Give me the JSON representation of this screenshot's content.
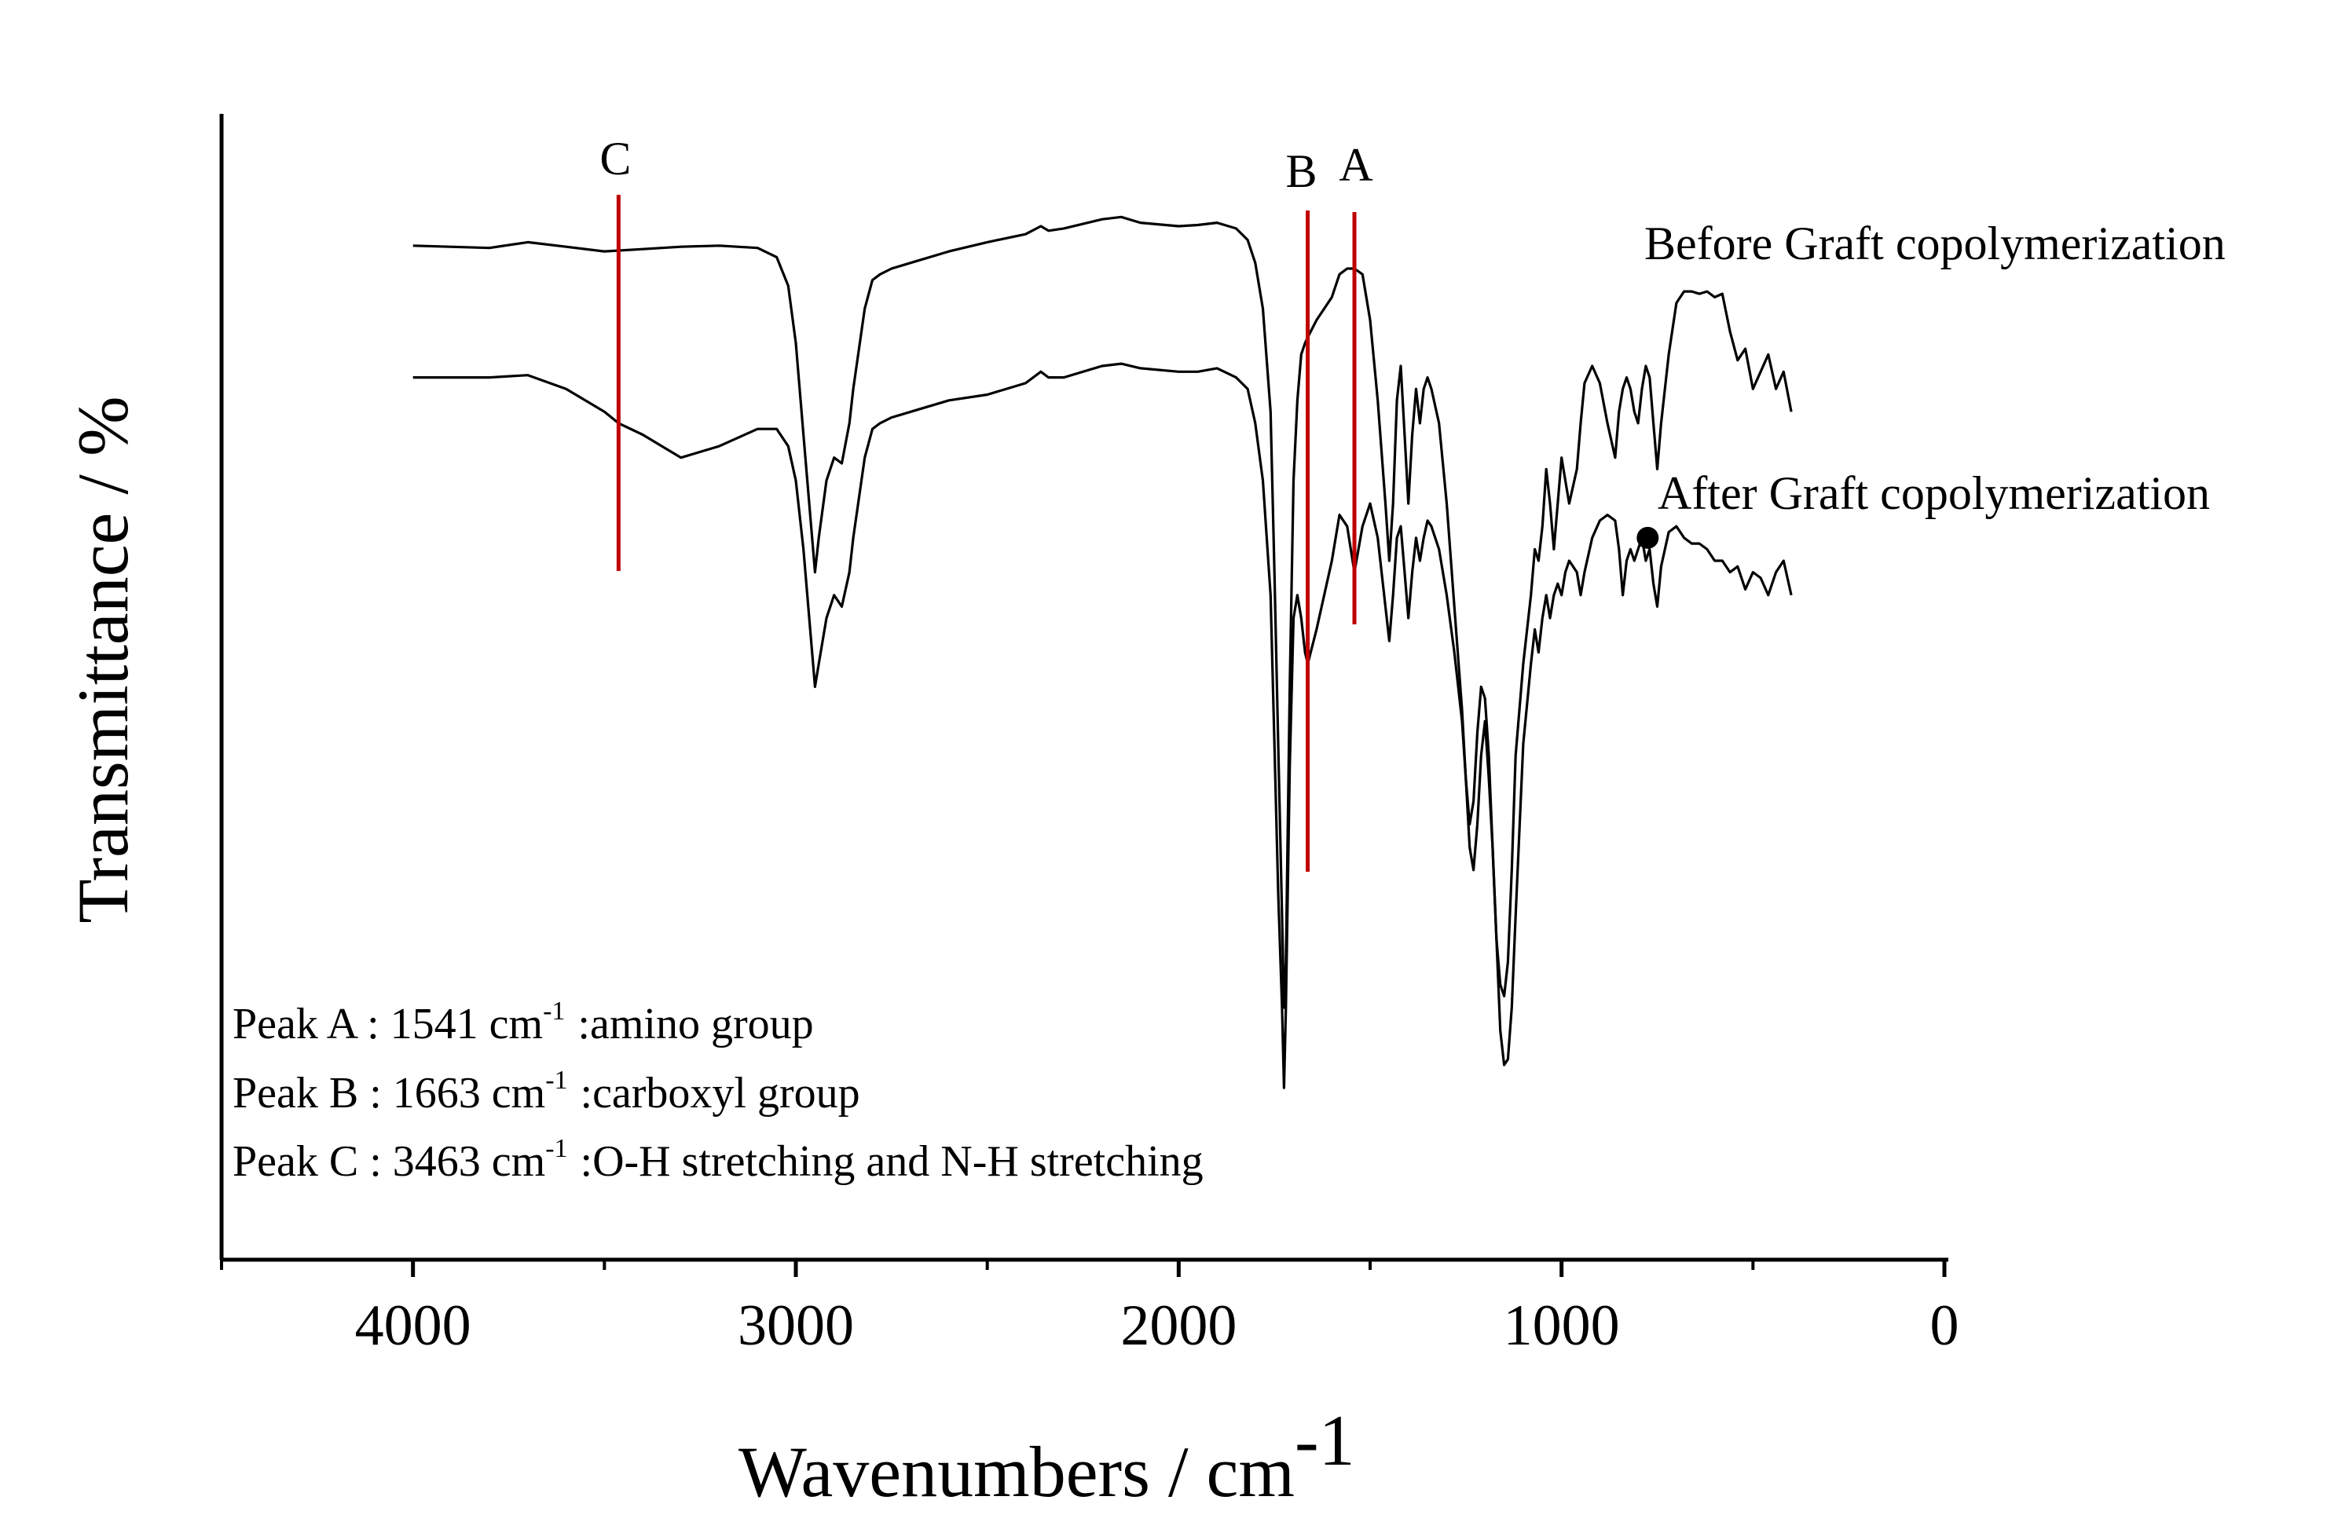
{
  "chart_data": {
    "type": "line",
    "title": "",
    "xlabel": "Wavenumbers / cm",
    "xlabel_superscript": "-1",
    "ylabel": "Transmittance / %",
    "xlim": [
      4500,
      0
    ],
    "x_reversed": true,
    "ylim": [
      0,
      100
    ],
    "y_ticks_shown": false,
    "x_tick_labels": [
      "4000",
      "3000",
      "2000",
      "1000",
      "0"
    ],
    "x_tick_values": [
      4000,
      3000,
      2000,
      1000,
      0
    ],
    "x_minor_tick_values": [
      4500,
      3500,
      2500,
      1500,
      500
    ],
    "grid": false,
    "line_color": "#000000",
    "marker_color": "#c00000",
    "series": [
      {
        "name": "Before Graft copolymerization",
        "x": [
          4000,
          3800,
          3700,
          3600,
          3500,
          3400,
          3300,
          3200,
          3100,
          3050,
          3020,
          3000,
          2980,
          2960,
          2950,
          2940,
          2920,
          2900,
          2880,
          2860,
          2850,
          2820,
          2800,
          2780,
          2750,
          2700,
          2600,
          2500,
          2400,
          2360,
          2340,
          2300,
          2200,
          2150,
          2100,
          2000,
          1950,
          1900,
          1850,
          1820,
          1800,
          1780,
          1760,
          1750,
          1740,
          1730,
          1725,
          1720,
          1710,
          1700,
          1690,
          1680,
          1670,
          1663,
          1640,
          1600,
          1580,
          1560,
          1541,
          1520,
          1500,
          1480,
          1460,
          1450,
          1440,
          1430,
          1420,
          1410,
          1400,
          1390,
          1380,
          1370,
          1360,
          1350,
          1340,
          1320,
          1300,
          1280,
          1260,
          1250,
          1240,
          1230,
          1220,
          1210,
          1200,
          1190,
          1180,
          1170,
          1160,
          1150,
          1140,
          1130,
          1120,
          1100,
          1080,
          1070,
          1060,
          1050,
          1040,
          1030,
          1020,
          1010,
          1000,
          990,
          980,
          960,
          950,
          940,
          920,
          900,
          880,
          860,
          850,
          840,
          830,
          820,
          810,
          800,
          790,
          780,
          770,
          760,
          750,
          740,
          720,
          700,
          680,
          660,
          640,
          620,
          600,
          580,
          560,
          540,
          520,
          500,
          480,
          460,
          440,
          420,
          400
        ],
        "y": [
          88.5,
          88.3,
          88.8,
          88.4,
          88.0,
          88.2,
          88.4,
          88.5,
          88.3,
          87.5,
          85.0,
          80.0,
          72.0,
          64.0,
          60.0,
          63.0,
          68.0,
          70.0,
          69.5,
          73.0,
          76.0,
          83.0,
          85.5,
          86.0,
          86.5,
          87.0,
          88.0,
          88.8,
          89.5,
          90.2,
          89.8,
          90.0,
          90.8,
          91.0,
          90.5,
          90.2,
          90.3,
          90.5,
          90.0,
          89.0,
          87.0,
          83.0,
          74.0,
          60.0,
          45.0,
          30.0,
          22.0,
          26.0,
          50.0,
          68.0,
          75.0,
          79.0,
          80.0,
          80.5,
          82.0,
          84.0,
          86.0,
          86.5,
          86.5,
          86.0,
          82.0,
          75.0,
          66.0,
          61.0,
          66.0,
          75.0,
          78.0,
          72.0,
          66.0,
          72.0,
          76.0,
          73.0,
          76.0,
          77.0,
          76.0,
          73.0,
          66.0,
          57.0,
          48.0,
          42.0,
          36.0,
          34.0,
          38.0,
          44.0,
          47.0,
          42.0,
          36.0,
          28.0,
          24.0,
          23.0,
          26.0,
          34.0,
          44.0,
          52.0,
          58.0,
          62.0,
          61.0,
          64.0,
          69.0,
          66.0,
          62.0,
          66.0,
          70.0,
          68.0,
          66.0,
          69.0,
          73.0,
          76.5,
          78.0,
          76.5,
          73.0,
          70.0,
          74.0,
          76.0,
          77.0,
          76.0,
          74.0,
          73.0,
          76.0,
          78.0,
          77.0,
          73.0,
          69.0,
          73.0,
          79.0,
          83.5,
          84.5,
          84.5,
          84.3,
          84.5,
          84.0,
          84.3,
          81.0,
          78.5,
          79.5,
          76.0,
          77.5,
          79.0,
          76.0,
          77.5,
          74.0
        ],
        "label_text": "Before Graft copolymerization"
      },
      {
        "name": "After Graft copolymerization",
        "x": [
          4000,
          3800,
          3700,
          3600,
          3500,
          3463,
          3400,
          3350,
          3300,
          3250,
          3200,
          3100,
          3050,
          3020,
          3000,
          2980,
          2960,
          2950,
          2940,
          2920,
          2900,
          2880,
          2860,
          2850,
          2820,
          2800,
          2780,
          2750,
          2700,
          2600,
          2500,
          2400,
          2360,
          2340,
          2300,
          2200,
          2150,
          2100,
          2000,
          1950,
          1900,
          1850,
          1820,
          1800,
          1780,
          1760,
          1750,
          1740,
          1730,
          1725,
          1720,
          1710,
          1700,
          1690,
          1680,
          1670,
          1663,
          1640,
          1600,
          1580,
          1560,
          1541,
          1520,
          1500,
          1480,
          1460,
          1450,
          1440,
          1430,
          1420,
          1410,
          1400,
          1390,
          1380,
          1370,
          1360,
          1350,
          1340,
          1320,
          1300,
          1280,
          1260,
          1250,
          1240,
          1230,
          1220,
          1210,
          1200,
          1190,
          1180,
          1170,
          1160,
          1150,
          1140,
          1130,
          1120,
          1100,
          1080,
          1070,
          1060,
          1050,
          1040,
          1030,
          1020,
          1010,
          1000,
          990,
          980,
          960,
          950,
          940,
          920,
          900,
          880,
          860,
          850,
          840,
          830,
          820,
          810,
          800,
          790,
          780,
          770,
          760,
          750,
          740,
          720,
          700,
          680,
          660,
          640,
          620,
          600,
          580,
          560,
          540,
          520,
          500,
          480,
          460,
          440,
          420,
          400
        ],
        "y": [
          77.0,
          77.0,
          77.2,
          76.0,
          74.0,
          73.0,
          72.0,
          71.0,
          70.0,
          70.5,
          71.0,
          72.5,
          72.5,
          71.0,
          68.0,
          62.0,
          54.0,
          50.0,
          52.0,
          56.0,
          58.0,
          57.0,
          60.0,
          63.0,
          70.0,
          72.5,
          73.0,
          73.5,
          74.0,
          75.0,
          75.5,
          76.5,
          77.5,
          77.0,
          77.0,
          78.0,
          78.2,
          77.8,
          77.5,
          77.5,
          77.8,
          77.0,
          76.0,
          73.0,
          68.0,
          58.0,
          45.0,
          32.0,
          22.0,
          15.0,
          22.0,
          43.0,
          56.0,
          58.0,
          56.0,
          53.0,
          52.0,
          55.0,
          61.0,
          65.0,
          64.0,
          60.0,
          64.0,
          66.0,
          63.0,
          57.0,
          54.0,
          58.0,
          63.0,
          64.0,
          60.0,
          56.0,
          60.0,
          63.0,
          61.0,
          63.0,
          64.5,
          64.0,
          62.0,
          58.0,
          53.0,
          47.0,
          42.0,
          38.0,
          40.0,
          46.0,
          50.0,
          49.0,
          44.0,
          36.0,
          28.0,
          20.0,
          17.0,
          17.5,
          22.0,
          30.0,
          45.0,
          52.0,
          55.0,
          53.0,
          56.0,
          58.0,
          56.0,
          58.0,
          59.0,
          58.0,
          60.0,
          61.0,
          60.0,
          58.0,
          60.0,
          63.0,
          64.5,
          65.0,
          64.5,
          62.0,
          58.0,
          61.0,
          62.0,
          61.0,
          62.0,
          63.0,
          61.0,
          62.0,
          59.0,
          57.0,
          60.5,
          63.5,
          64.0,
          63.0,
          62.5,
          62.5,
          62.0,
          61.0,
          61.0,
          60.0,
          60.5,
          58.5,
          60.0,
          59.5,
          58.0,
          60.0,
          61.0,
          58.0
        ],
        "label_text": "After Graft copolymerization"
      }
    ],
    "peak_markers": [
      {
        "label": "A",
        "x": 1541
      },
      {
        "label": "B",
        "x": 1663
      },
      {
        "label": "C",
        "x": 3463
      }
    ],
    "legend_dot_x": 775,
    "annotations": [
      {
        "peak": "Peak A",
        "value": "1541",
        "unit": "cm",
        "sup": "-1",
        "desc": ":amino group"
      },
      {
        "peak": "Peak B",
        "value": "1663",
        "unit": "cm",
        "sup": "-1",
        "desc": ":carboxyl group"
      },
      {
        "peak": "Peak C",
        "value": "3463",
        "unit": "cm",
        "sup": "-1",
        "desc": ":O-H stretching and N-H stretching"
      }
    ]
  }
}
